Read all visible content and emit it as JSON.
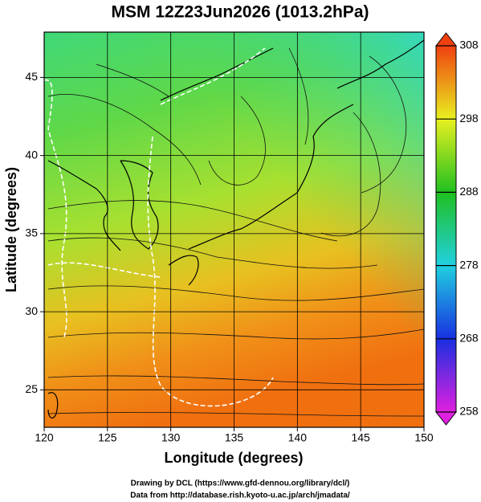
{
  "title": "MSM 12Z23Jun2026 (1013.2hPa)",
  "x_axis": {
    "label": "Longitude (degrees)",
    "lim": [
      120,
      150
    ],
    "ticks": [
      120,
      125,
      130,
      135,
      140,
      145,
      150
    ]
  },
  "y_axis": {
    "label": "Latitude  (degrees)",
    "lim": [
      22.6,
      47.9
    ],
    "ticks": [
      25,
      30,
      35,
      40,
      45
    ]
  },
  "colorbar": {
    "lim": [
      258,
      308
    ],
    "ticks": [
      258,
      268,
      278,
      288,
      298,
      308
    ],
    "colors": [
      "#e020e0",
      "#1830e0",
      "#20d0e0",
      "#20c020",
      "#e8f020",
      "#f04010"
    ]
  },
  "footer": [
    "Drawing by DCL (https://www.gfd-dennou.org/library/dcl/)",
    "Data from http://database.rish.kyoto-u.ac.jp/arch/jmadata/"
  ]
}
